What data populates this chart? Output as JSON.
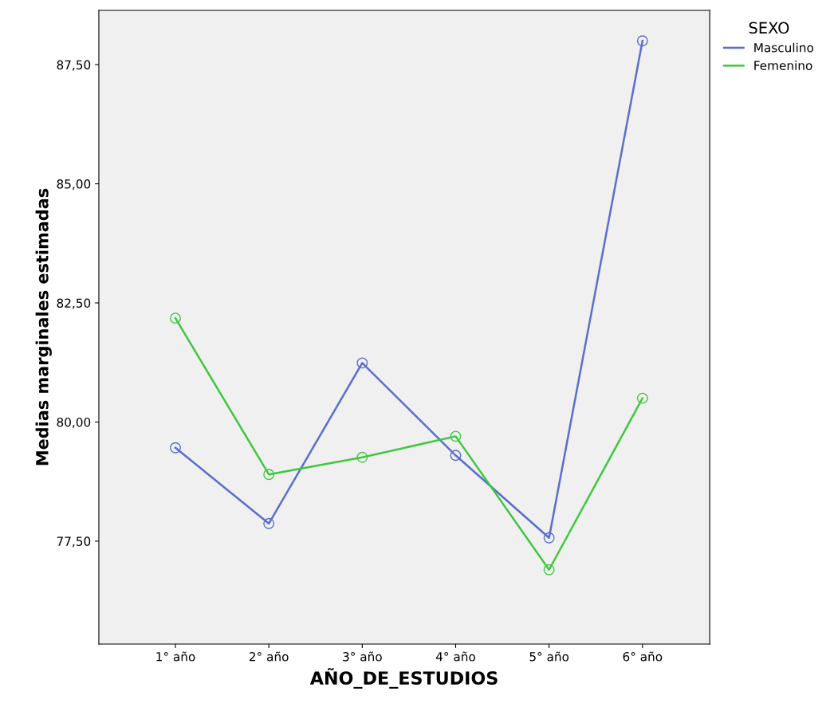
{
  "chart_data": {
    "type": "line",
    "xlabel": "AÑO_DE_ESTUDIOS",
    "ylabel": "Medias marginales estimadas",
    "legend_title": "SEXO",
    "categories": [
      "1° año",
      "2° año",
      "3° año",
      "4° año",
      "5° año",
      "6° año"
    ],
    "series": [
      {
        "name": "Masculino",
        "color": "#5a6ecb",
        "values": [
          79.46,
          77.87,
          81.24,
          79.3,
          77.57,
          88.0
        ]
      },
      {
        "name": "Femenino",
        "color": "#3fc73f",
        "values": [
          82.18,
          78.9,
          79.26,
          79.7,
          76.9,
          80.5
        ]
      }
    ],
    "ylim": [
      75.34,
      88.64
    ],
    "yticks": [
      {
        "value": 77.5,
        "label": "77,50"
      },
      {
        "value": 80.0,
        "label": "80,00"
      },
      {
        "value": 82.5,
        "label": "82,50"
      },
      {
        "value": 85.0,
        "label": "85,00"
      },
      {
        "value": 87.5,
        "label": "87,50"
      }
    ],
    "marker": "circle",
    "line_style": "solid",
    "grid": false,
    "legend": "top right"
  }
}
